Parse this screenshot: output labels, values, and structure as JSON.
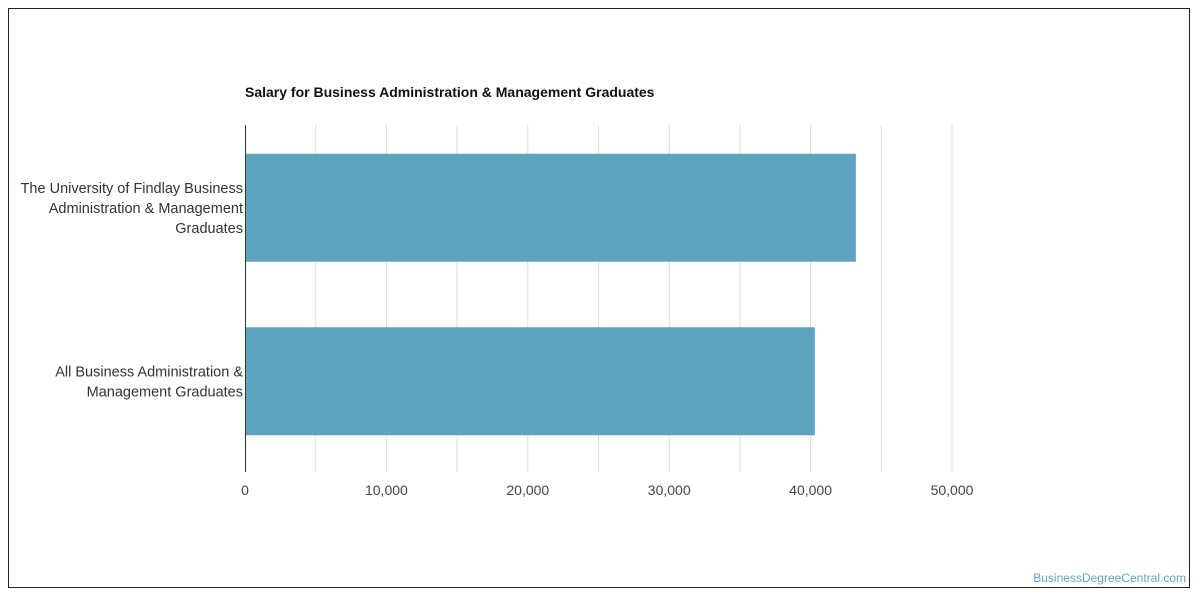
{
  "chart_data": {
    "type": "bar",
    "orientation": "horizontal",
    "title": "Salary for Business Administration & Management Graduates",
    "categories": [
      [
        "The University of Findlay Business",
        "Administration & Management",
        "Graduates"
      ],
      [
        "All Business Administration &",
        "Management Graduates"
      ]
    ],
    "values": [
      43200,
      40300
    ],
    "xlim": [
      0,
      50000
    ],
    "xticks": [
      0,
      10000,
      20000,
      30000,
      40000,
      50000
    ],
    "xtick_labels": [
      "0",
      "10,000",
      "20,000",
      "30,000",
      "40,000",
      "50,000"
    ],
    "grid": true,
    "bar_color": "#5ea3bf",
    "grid_color": "#dddddd"
  },
  "source_label": "BusinessDegreeCentral.com"
}
